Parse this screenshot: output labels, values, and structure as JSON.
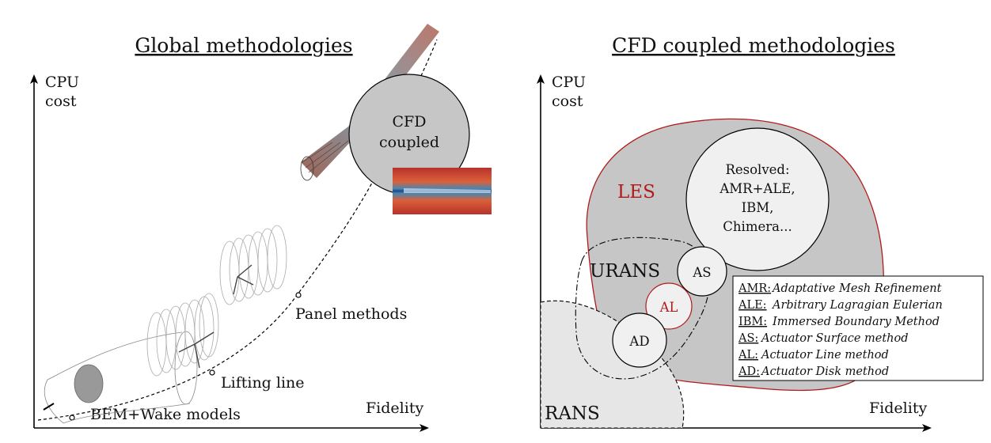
{
  "left": {
    "title": "Global methodologies",
    "y_axis_line1": "CPU",
    "y_axis_line2": "cost",
    "x_axis": "Fidelity",
    "stages": {
      "bem": "BEM+Wake models",
      "lifting": "Lifting line",
      "panel": "Panel methods",
      "cfd_line1": "CFD",
      "cfd_line2": "coupled"
    }
  },
  "right": {
    "title": "CFD coupled methodologies",
    "y_axis_line1": "CPU",
    "y_axis_line2": "cost",
    "x_axis": "Fidelity",
    "regions": {
      "les": "LES",
      "urans": "URANS",
      "rans": "RANS"
    },
    "resolved": [
      "Resolved:",
      "AMR+ALE,",
      "IBM,",
      "Chimera..."
    ],
    "circles": {
      "as": "AS",
      "al": "AL",
      "ad": "AD"
    },
    "legend": [
      {
        "key": "AMR:",
        "value": "Adaptative Mesh Refinement"
      },
      {
        "key": "ALE:",
        "value": "Arbitrary Lagragian Eulerian"
      },
      {
        "key": "IBM:",
        "value": "Immersed Boundary Method"
      },
      {
        "key": "AS:",
        "value": "Actuator Surface method"
      },
      {
        "key": "AL:",
        "value": "Actuator Line method"
      },
      {
        "key": "AD:",
        "value": "Actuator Disk method"
      }
    ]
  },
  "colors": {
    "les_red": "#b11a1a",
    "gray_fill": "#c6c6c6",
    "light_fill": "#f0f0f0",
    "rans_fill": "#e6e6e6"
  }
}
